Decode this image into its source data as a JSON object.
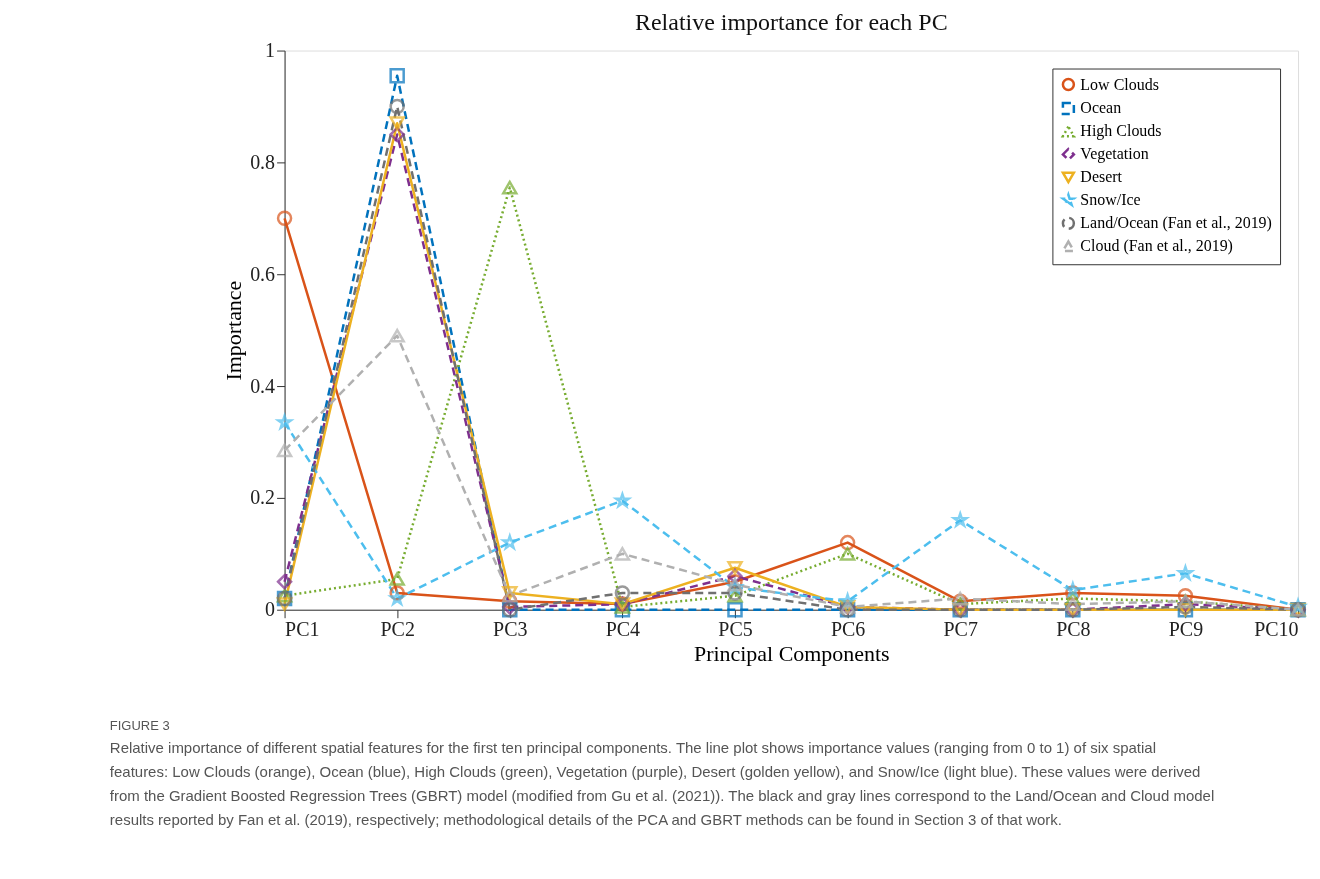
{
  "chart_data": {
    "type": "line",
    "title": "Relative importance for each PC",
    "xlabel": "Principal Components",
    "ylabel": "Importance",
    "categories": [
      "PC1",
      "PC2",
      "PC3",
      "PC4",
      "PC5",
      "PC6",
      "PC7",
      "PC8",
      "PC9",
      "PC10"
    ],
    "ylim": [
      0,
      1
    ],
    "yticks": [
      0,
      0.2,
      0.4,
      0.6,
      0.8,
      1
    ],
    "grid": false,
    "legend": "top right",
    "series": [
      {
        "name": "Low Clouds",
        "color": "#d95319",
        "marker": "circle",
        "line_style": "solid",
        "values": [
          0.7,
          0.03,
          0.015,
          0.01,
          0.05,
          0.12,
          0.015,
          0.03,
          0.025,
          0
        ]
      },
      {
        "name": "Ocean",
        "color": "#0072bd",
        "marker": "square",
        "line_style": "dashed",
        "values": [
          0.02,
          0.955,
          0,
          0,
          0,
          0,
          0,
          0,
          0,
          0
        ]
      },
      {
        "name": "High Clouds",
        "color": "#77ac30",
        "marker": "triangle",
        "line_style": "dotted",
        "values": [
          0.025,
          0.055,
          0.755,
          0.005,
          0.025,
          0.1,
          0.01,
          0.02,
          0.015,
          0
        ]
      },
      {
        "name": "Vegetation",
        "color": "#7e2f8e",
        "marker": "diamond",
        "line_style": "dashed",
        "values": [
          0.05,
          0.85,
          0.005,
          0.01,
          0.06,
          0.005,
          0,
          0,
          0.01,
          0
        ]
      },
      {
        "name": "Desert",
        "color": "#edb120",
        "marker": "triangle-down",
        "line_style": "solid",
        "values": [
          0.01,
          0.87,
          0.03,
          0.01,
          0.075,
          0.005,
          0,
          0,
          0,
          0
        ]
      },
      {
        "name": "Snow/Ice",
        "color": "#4dbeee",
        "marker": "star",
        "line_style": "dashed",
        "values": [
          0.335,
          0.02,
          0.12,
          0.195,
          0.04,
          0.015,
          0.16,
          0.035,
          0.065,
          0.005
        ]
      },
      {
        "name": "Land/Ocean (Fan et al., 2019)",
        "color": "#707070",
        "marker": "circle",
        "line_style": "dashed",
        "values": [
          0.02,
          0.9,
          0,
          0.03,
          0.03,
          0,
          0,
          0,
          0.005,
          0
        ]
      },
      {
        "name": "Cloud (Fan et al., 2019)",
        "color": "#b0b0b0",
        "marker": "triangle",
        "line_style": "dashed",
        "values": [
          0.285,
          0.49,
          0.025,
          0.1,
          0.045,
          0.005,
          0.02,
          0.01,
          0.015,
          0
        ]
      }
    ],
    "annotations": [
      "FIGURE 3",
      "Relative importance of different spatial features for the first ten principal components. The line plot shows importance values (ranging from 0 to 1) of six spatial features: Low Clouds (orange), Ocean (blue), High Clouds (green), Vegetation (purple), Desert (golden yellow), and Snow/Ice (light blue). These values were derived from the Gradient Boosted Regression Trees (GBRT) model (modified from Gu et al. (2021)). The black and gray lines correspond to the Land/Ocean and Cloud model results reported by Fan et al. (2019), respectively; methodological details of the PCA and GBRT methods can be found in Section 3 of that work."
    ]
  }
}
